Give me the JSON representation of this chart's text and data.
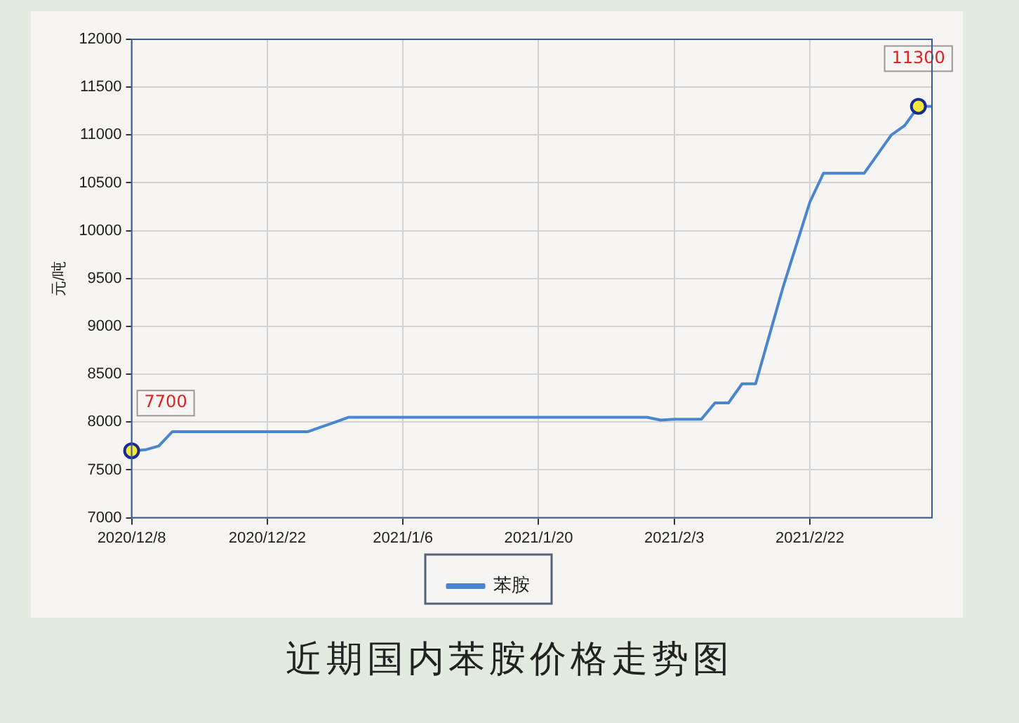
{
  "chart_data": {
    "type": "line",
    "title": "近期国内苯胺价格走势图",
    "ylabel": "元/吨",
    "categories": [
      "2020/12/8",
      null,
      null,
      null,
      null,
      null,
      null,
      null,
      null,
      null,
      "2020/12/22",
      null,
      null,
      null,
      null,
      null,
      null,
      null,
      null,
      null,
      "2021/1/6",
      null,
      null,
      null,
      null,
      null,
      null,
      null,
      null,
      null,
      "2021/1/20",
      null,
      null,
      null,
      null,
      null,
      null,
      null,
      null,
      null,
      "2021/2/3",
      null,
      null,
      null,
      null,
      null,
      null,
      null,
      null,
      null,
      "2021/2/22",
      null,
      null,
      null,
      null,
      null,
      null,
      null,
      null,
      null
    ],
    "series": [
      {
        "name": "苯胺",
        "color": "#4a86d0",
        "values": [
          7700,
          7710,
          7750,
          7900,
          7900,
          7900,
          7900,
          7900,
          7900,
          7900,
          7900,
          7900,
          7900,
          7900,
          7950,
          8000,
          8050,
          8050,
          8050,
          8050,
          8050,
          8050,
          8050,
          8050,
          8050,
          8050,
          8050,
          8050,
          8050,
          8050,
          8050,
          8050,
          8050,
          8050,
          8050,
          8050,
          8050,
          8050,
          8050,
          8020,
          8030,
          8030,
          8030,
          8200,
          8200,
          8400,
          8400,
          8900,
          9400,
          9850,
          10300,
          10600,
          10600,
          10600,
          10600,
          10800,
          11000,
          11100,
          11300,
          11300
        ],
        "value_labels": [
          "7700",
          null,
          null,
          null,
          null,
          null,
          null,
          null,
          null,
          null,
          null,
          null,
          null,
          null,
          null,
          null,
          null,
          null,
          null,
          null,
          null,
          null,
          null,
          null,
          null,
          null,
          null,
          null,
          null,
          null,
          null,
          null,
          null,
          null,
          null,
          null,
          null,
          null,
          null,
          null,
          null,
          null,
          null,
          null,
          null,
          null,
          null,
          null,
          null,
          null,
          null,
          null,
          null,
          null,
          null,
          null,
          null,
          null,
          "11300",
          null
        ]
      }
    ],
    "ylim": [
      7000,
      12000
    ],
    "yticks": [
      7000,
      7500,
      8000,
      8500,
      9000,
      9500,
      10000,
      10500,
      11000,
      11500,
      12000
    ],
    "grid": true,
    "legend": "bottom",
    "marker": "none",
    "line_style": "solid"
  }
}
